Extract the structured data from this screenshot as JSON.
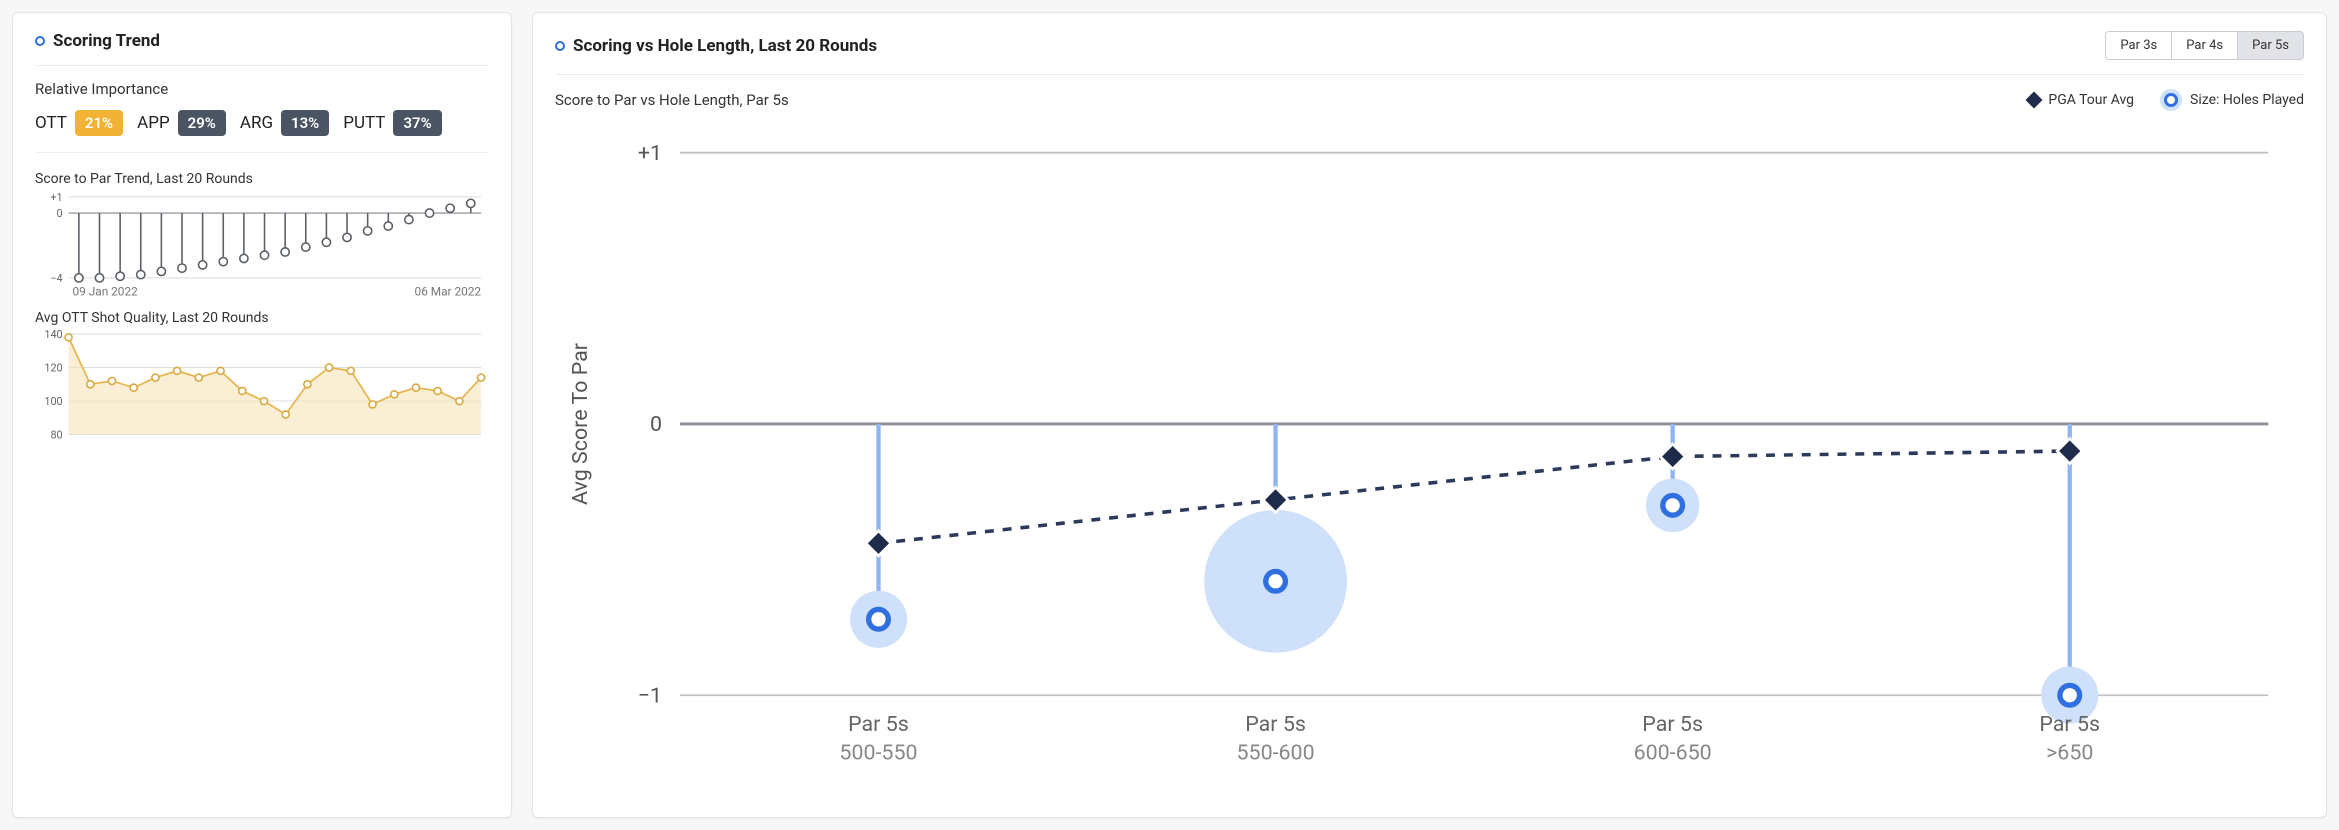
{
  "left": {
    "title": "Scoring Trend",
    "importance": {
      "heading": "Relative Importance",
      "items": [
        {
          "label": "OTT",
          "value": "21%",
          "bg": "#f2b233"
        },
        {
          "label": "APP",
          "value": "29%",
          "bg": "#4a5462"
        },
        {
          "label": "ARG",
          "value": "13%",
          "bg": "#4a5462"
        },
        {
          "label": "PUTT",
          "value": "37%",
          "bg": "#4a5462"
        }
      ]
    },
    "scoreTrend": {
      "label": "Score to Par Trend, Last 20 Rounds",
      "ylim": [
        -4,
        1
      ],
      "yticks": [
        1,
        0,
        -4
      ],
      "ytickLabels": [
        "+1",
        "0",
        "−4"
      ],
      "values": [
        -4.0,
        -4.0,
        -3.9,
        -3.8,
        -3.6,
        -3.4,
        -3.2,
        -3.0,
        -2.8,
        -2.6,
        -2.4,
        -2.1,
        -1.8,
        -1.5,
        -1.1,
        -0.8,
        -0.4,
        0.0,
        0.3,
        0.6
      ],
      "marker_stroke": "#5a5f66",
      "marker_fill": "#ffffff",
      "stem_color": "#5a5f66",
      "grid_color": "#d8dadf",
      "axis_color": "#9a9ea6",
      "date_start": "09 Jan 2022",
      "date_end": "06 Mar 2022",
      "label_fontsize": 11
    },
    "ott": {
      "label": "Avg OTT Shot Quality, Last 20 Rounds",
      "ylim": [
        80,
        140
      ],
      "yticks": [
        140,
        120,
        100,
        80
      ],
      "values": [
        138,
        110,
        112,
        108,
        114,
        118,
        114,
        118,
        106,
        100,
        92,
        110,
        120,
        118,
        98,
        104,
        108,
        106,
        100,
        114
      ],
      "line_color": "#e7b651",
      "fill_color": "#f6e2b2",
      "fill_opacity": 0.55,
      "marker_stroke": "#d9a83e",
      "marker_fill": "#ffffff",
      "grid_color": "#dcdde2",
      "label_fontsize": 11
    }
  },
  "right": {
    "title": "Scoring vs Hole Length, Last 20 Rounds",
    "tabs": [
      "Par 3s",
      "Par 4s",
      "Par 5s"
    ],
    "active_tab": 2,
    "subtitle": "Score to Par vs Hole Length, Par 5s",
    "legend": {
      "pga": "PGA Tour Avg",
      "bubble": "Size: Holes Played"
    },
    "chart": {
      "y_axis_label": "Avg Score To Par",
      "ylim": [
        -1,
        1
      ],
      "yticks": [
        1,
        0,
        -1
      ],
      "ytickLabels": [
        "+1",
        "0",
        "−1"
      ],
      "categories": [
        {
          "line1": "Par 5s",
          "line2": "500-550"
        },
        {
          "line1": "Par 5s",
          "line2": "550-600"
        },
        {
          "line1": "Par 5s",
          "line2": "600-650"
        },
        {
          "line1": "Par 5s",
          "line2": ">650"
        }
      ],
      "pga": [
        -0.44,
        -0.28,
        -0.12,
        -0.1
      ],
      "player": [
        {
          "value": -0.72,
          "size": 16
        },
        {
          "value": -0.58,
          "size": 40
        },
        {
          "value": -0.3,
          "size": 15
        },
        {
          "value": -1.0,
          "size": 16
        }
      ],
      "grid_color": "#bfc2c8",
      "zero_line_color": "#8a8e96",
      "diamond_fill": "#1f2b4a",
      "diamond_stroke": "#ffffff",
      "dash_color": "#2b3a5a",
      "stem_color": "#8fb4ef",
      "bubble_fill": "#cfe0fa",
      "bubble_center_stroke": "#2f6fe0",
      "bubble_center_fill": "#ffffff",
      "tick_fontsize": 12,
      "axis_label_fontsize": 12
    }
  }
}
